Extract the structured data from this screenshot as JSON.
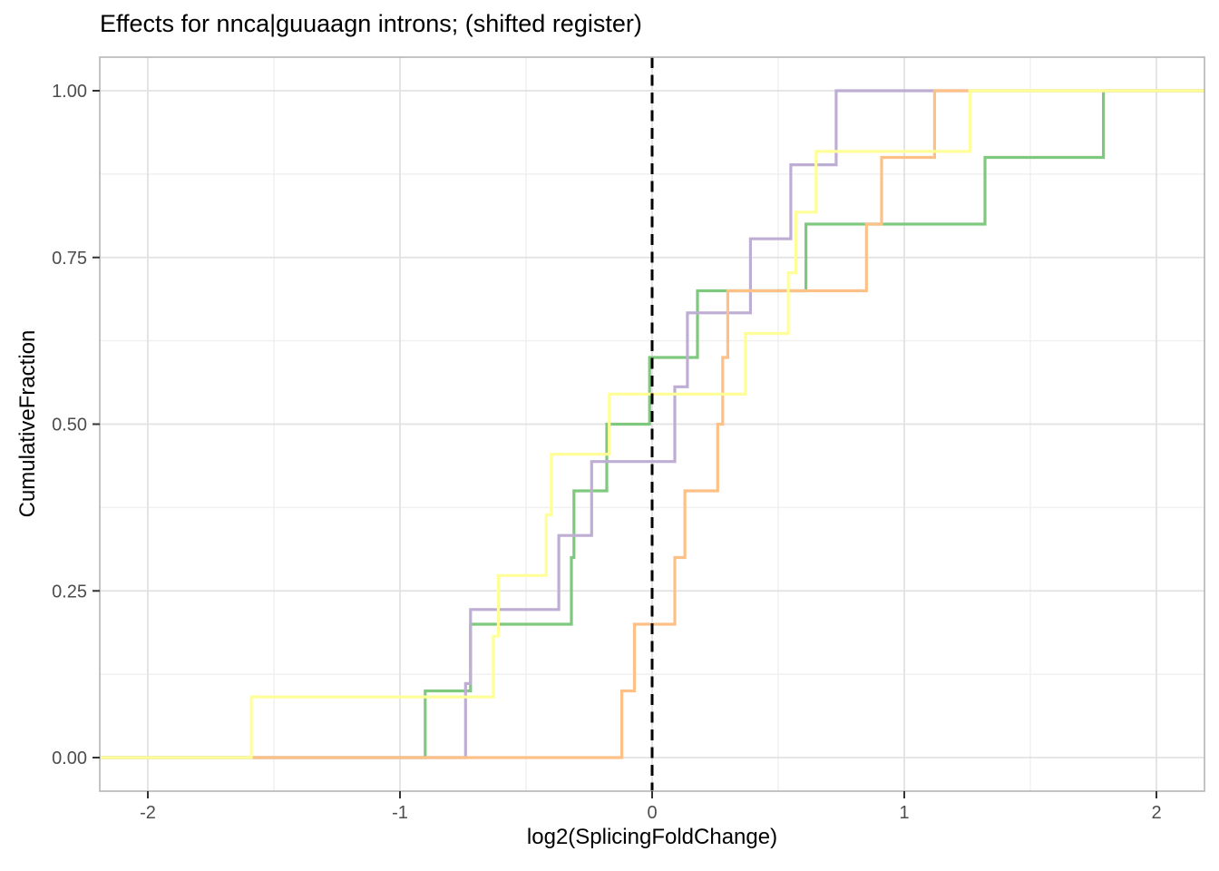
{
  "chart_data": {
    "type": "line",
    "subtype": "ecdf-step",
    "title": "Effects for nnca|guuaagn introns; (shifted register)",
    "xlabel": "log2(SplicingFoldChange)",
    "ylabel": "CumulativeFraction",
    "xlim": [
      -2.19,
      2.19
    ],
    "ylim": [
      -0.05,
      1.05
    ],
    "grid": true,
    "legend_position": "none",
    "x_ticks": [
      -2,
      -1,
      0,
      1,
      2
    ],
    "x_tick_labels": [
      "-2",
      "-1",
      "0",
      "1",
      "2"
    ],
    "x_minor_ticks": [
      -1.5,
      -0.5,
      0.5,
      1.5
    ],
    "y_ticks": [
      0,
      0.25,
      0.5,
      0.75,
      1
    ],
    "y_tick_labels": [
      "0.00",
      "0.25",
      "0.50",
      "0.75",
      "1.00"
    ],
    "y_minor_ticks": [
      0.125,
      0.375,
      0.625,
      0.875
    ],
    "vline": {
      "x": 0,
      "style": "dashed",
      "color": "#000000"
    },
    "series": [
      {
        "name": "green",
        "color": "#7FC97F",
        "n_points": 10,
        "points": [
          [
            -0.9,
            0.1
          ],
          [
            -0.72,
            0.2
          ],
          [
            -0.32,
            0.3
          ],
          [
            -0.31,
            0.4
          ],
          [
            -0.18,
            0.5
          ],
          [
            -0.01,
            0.6
          ],
          [
            0.18,
            0.7
          ],
          [
            0.61,
            0.8
          ],
          [
            1.32,
            0.9
          ],
          [
            1.79,
            1.0
          ]
        ]
      },
      {
        "name": "purple",
        "color": "#BEAED4",
        "n_points": 9,
        "points": [
          [
            -0.74,
            0.111
          ],
          [
            -0.72,
            0.222
          ],
          [
            -0.37,
            0.333
          ],
          [
            -0.24,
            0.444
          ],
          [
            0.09,
            0.556
          ],
          [
            0.14,
            0.667
          ],
          [
            0.39,
            0.778
          ],
          [
            0.55,
            0.889
          ],
          [
            0.73,
            1.0
          ]
        ]
      },
      {
        "name": "orange",
        "color": "#FDC086",
        "n_points": 10,
        "points": [
          [
            -0.12,
            0.1
          ],
          [
            -0.07,
            0.2
          ],
          [
            0.09,
            0.3
          ],
          [
            0.13,
            0.4
          ],
          [
            0.26,
            0.5
          ],
          [
            0.28,
            0.6
          ],
          [
            0.3,
            0.7
          ],
          [
            0.85,
            0.8
          ],
          [
            0.91,
            0.9
          ],
          [
            1.12,
            1.0
          ]
        ]
      },
      {
        "name": "yellow",
        "color": "#FFFF99",
        "n_points": 11,
        "points": [
          [
            -1.59,
            0.091
          ],
          [
            -0.63,
            0.182
          ],
          [
            -0.61,
            0.273
          ],
          [
            -0.42,
            0.364
          ],
          [
            -0.4,
            0.455
          ],
          [
            -0.17,
            0.545
          ],
          [
            0.37,
            0.636
          ],
          [
            0.54,
            0.727
          ],
          [
            0.57,
            0.818
          ],
          [
            0.65,
            0.909
          ],
          [
            1.26,
            1.0
          ]
        ]
      }
    ],
    "style": {
      "panel_background": "#FFFFFF",
      "panel_border": "#B5B5B5",
      "grid_major": "#E2E2E2",
      "grid_minor": "#F0F0F0",
      "tick_mark": "#333333",
      "tick_label_color": "#4D4D4D",
      "title_color": "#000000"
    }
  }
}
